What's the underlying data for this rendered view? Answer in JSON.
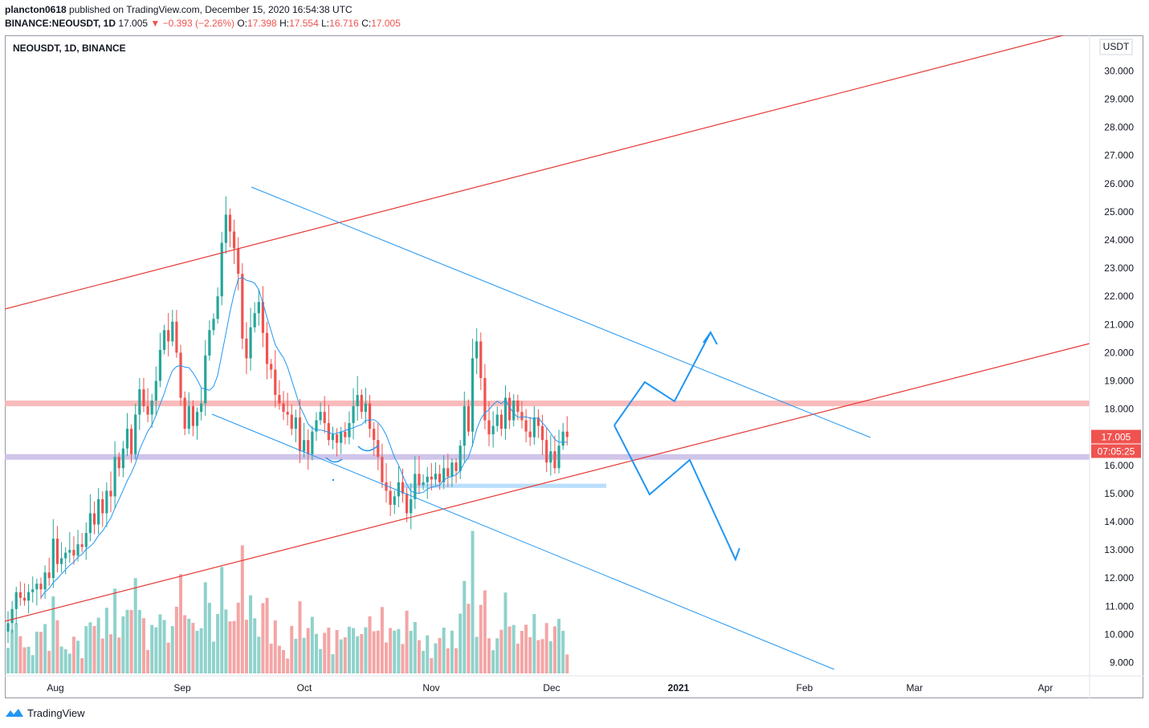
{
  "header": {
    "publisher": "plancton0618",
    "published_text": "published on TradingView.com, December 15, 2020 16:54:38 UTC",
    "symbol": "BINANCE:NEOUSDT, 1D",
    "last": "17.005",
    "change": "▼ −0.393 (−2.26%)",
    "o_label": "O:",
    "o_value": "17.398",
    "h_label": "H:",
    "h_value": "17.554",
    "l_label": "L:",
    "l_value": "16.716",
    "c_label": "C:",
    "c_value": "17.005"
  },
  "chart_title": "NEOUSDT, 1D, BINANCE",
  "currency": "USDT",
  "price_badge": "17.005",
  "countdown_badge": "07:05:25",
  "brand": "TradingView",
  "colors": {
    "up": "#26a69a",
    "down": "#ef5350",
    "up_volume": "#8fd2cb",
    "down_volume": "#f4a5a5",
    "ma": "#2196f3",
    "drawing_red": "#e53935",
    "drawing_blue": "#2196f3",
    "resistance_zone": "#f8b4b4",
    "support_zone": "#cbbfe8",
    "small_zone": "#bbdefb"
  },
  "chart_data": {
    "type": "candlestick",
    "symbol": "NEOUSDT",
    "interval": "1D",
    "exchange": "BINANCE",
    "y_axis": {
      "ticks": [
        "9.000",
        "10.000",
        "11.000",
        "12.000",
        "13.000",
        "14.000",
        "15.000",
        "16.000",
        "17.000",
        "18.000",
        "19.000",
        "20.000",
        "21.000",
        "22.000",
        "23.000",
        "24.000",
        "25.000",
        "26.000",
        "27.000",
        "28.000",
        "29.000",
        "30.000"
      ],
      "range": [
        8.5,
        31.0
      ]
    },
    "x_axis": {
      "labels": [
        {
          "text": "Aug",
          "bold": false
        },
        {
          "text": "Sep",
          "bold": false
        },
        {
          "text": "Oct",
          "bold": false
        },
        {
          "text": "Nov",
          "bold": false
        },
        {
          "text": "Dec",
          "bold": false
        },
        {
          "text": "2021",
          "bold": true
        },
        {
          "text": "Feb",
          "bold": false
        },
        {
          "text": "Mar",
          "bold": false
        },
        {
          "text": "Apr",
          "bold": false
        }
      ]
    },
    "series_closes": [
      10.4,
      10.9,
      11.5,
      11.3,
      11.2,
      11.5,
      11.6,
      11.8,
      11.6,
      12.2,
      12.0,
      13.4,
      12.5,
      12.7,
      12.9,
      13.0,
      12.8,
      13.2,
      13.1,
      13.6,
      14.3,
      13.9,
      14.8,
      14.3,
      15.1,
      14.9,
      16.3,
      15.9,
      16.6,
      17.3,
      16.4,
      17.8,
      18.7,
      18.1,
      17.8,
      18.3,
      19.0,
      20.1,
      20.8,
      20.4,
      21.1,
      20.0,
      18.4,
      17.3,
      18.1,
      17.4,
      17.9,
      18.2,
      19.9,
      20.8,
      21.2,
      22.0,
      23.9,
      24.9,
      24.3,
      23.7,
      22.8,
      20.5,
      19.8,
      20.9,
      21.4,
      21.8,
      20.7,
      19.6,
      19.4,
      18.5,
      18.2,
      17.9,
      17.8,
      17.3,
      17.7,
      16.5,
      16.9,
      16.4,
      17.2,
      17.6,
      17.9,
      17.5,
      16.9,
      17.1,
      16.8,
      17.2,
      17.0,
      17.5,
      18.1,
      18.5,
      17.9,
      18.2,
      17.3,
      16.9,
      16.3,
      15.4,
      15.1,
      14.6,
      14.9,
      15.4,
      15.0,
      14.3,
      14.8,
      15.7,
      15.3,
      15.4,
      15.6,
      15.5,
      15.7,
      15.4,
      15.9,
      15.6,
      16.1,
      15.8,
      16.7,
      18.1,
      17.2,
      19.8,
      20.4,
      19.1,
      17.6,
      17.1,
      17.4,
      17.8,
      17.3,
      18.4,
      17.6,
      18.3,
      17.9,
      17.6,
      17.2,
      17.0,
      17.7,
      17.4,
      16.9,
      16.1,
      16.5,
      15.9,
      16.7,
      17.2,
      17.005
    ],
    "annotations": {
      "resistance_zone": [
        18.1,
        18.3
      ],
      "support_zone": [
        16.2,
        16.4
      ],
      "small_support_zone": [
        15.2,
        15.35
      ],
      "scenario_up_target": 20.9,
      "scenario_down_target": 12.6
    }
  }
}
